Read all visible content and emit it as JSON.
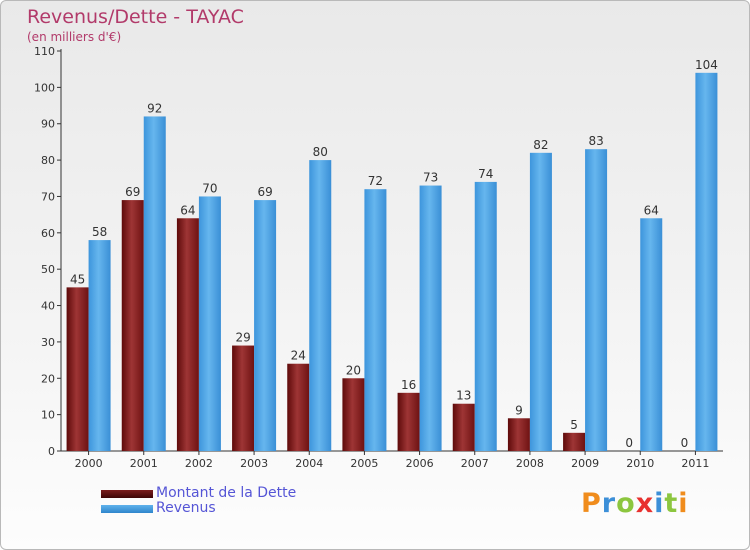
{
  "header": {
    "title": "Revenus/Dette - TAYAC",
    "subtitle": "(en milliers d'€)"
  },
  "chart_data": {
    "type": "bar",
    "categories": [
      "2000",
      "2001",
      "2002",
      "2003",
      "2004",
      "2005",
      "2006",
      "2007",
      "2008",
      "2009",
      "2010",
      "2011"
    ],
    "series": [
      {
        "name": "Montant de la Dette",
        "color": "#8b1a1a",
        "values": [
          45,
          69,
          64,
          29,
          24,
          20,
          16,
          13,
          9,
          5,
          0,
          0
        ]
      },
      {
        "name": "Revenus",
        "color": "#4ea6e6",
        "values": [
          58,
          92,
          70,
          69,
          80,
          72,
          73,
          74,
          82,
          83,
          64,
          104
        ]
      }
    ],
    "ylim": [
      0,
      110
    ],
    "yticks": [
      0,
      10,
      20,
      30,
      40,
      50,
      60,
      70,
      80,
      90,
      100,
      110
    ],
    "grid": false,
    "data_labels": true,
    "legend_position": "bottom-left"
  },
  "legend": {
    "items": [
      {
        "label": "Montant de la Dette",
        "color": "#5a0f0f"
      },
      {
        "label": "Revenus",
        "color": "#4ea6e6"
      }
    ]
  },
  "logo": {
    "letters": [
      "P",
      "r",
      "o",
      "x",
      "i",
      "t",
      "i"
    ],
    "colors": [
      "#f08c1c",
      "#3c8fd8",
      "#8cc63f",
      "#e8312f",
      "#3c8fd8",
      "#8cc63f",
      "#f08c1c"
    ]
  }
}
